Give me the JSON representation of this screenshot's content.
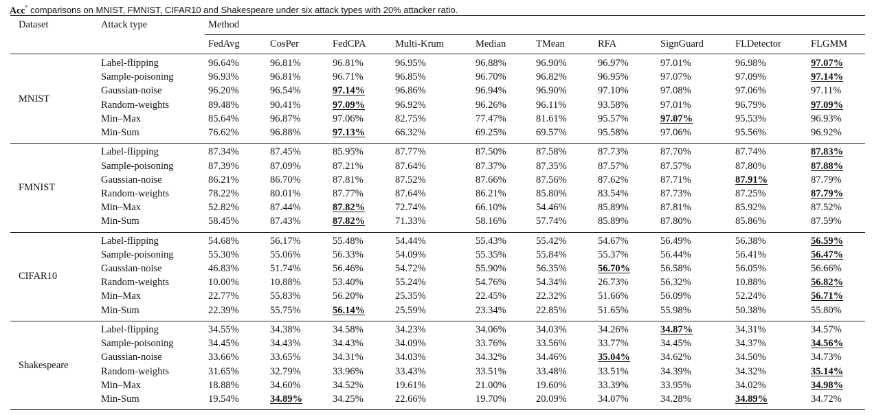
{
  "caption": {
    "term": "Acc",
    "sup": "*",
    "text": "comparisons on MNIST, FMNIST, CIFAR10 and Shakespeare under six attack types with 20% attacker ratio."
  },
  "header": {
    "dataset": "Dataset",
    "attack_type": "Attack type",
    "method": "Method",
    "methods": [
      "FedAvg",
      "CosPer",
      "FedCPA",
      "Multi-Krum",
      "Median",
      "TMean",
      "RFA",
      "SignGuard",
      "FLDetector",
      "FLGMM"
    ]
  },
  "groups": [
    {
      "dataset": "MNIST",
      "rows": [
        {
          "attack": "Label-flipping",
          "values": [
            "96.64%",
            "96.81%",
            "96.81%",
            "96.95%",
            "96.88%",
            "96.90%",
            "96.97%",
            "97.01%",
            "96.98%",
            "97.07%"
          ],
          "best": [
            9
          ]
        },
        {
          "attack": "Sample-poisoning",
          "values": [
            "96.93%",
            "96.81%",
            "96.71%",
            "96.85%",
            "96.70%",
            "96.82%",
            "96.95%",
            "97.07%",
            "97.09%",
            "97.14%"
          ],
          "best": [
            9
          ]
        },
        {
          "attack": "Gaussian-noise",
          "values": [
            "96.20%",
            "96.54%",
            "97.14%",
            "96.86%",
            "96.94%",
            "96.90%",
            "97.10%",
            "97.08%",
            "97.06%",
            "97.11%"
          ],
          "best": [
            2
          ]
        },
        {
          "attack": "Random-weights",
          "values": [
            "89.48%",
            "90.41%",
            "97.09%",
            "96.92%",
            "96.26%",
            "96.11%",
            "93.58%",
            "97.01%",
            "96.79%",
            "97.09%"
          ],
          "best": [
            2,
            9
          ]
        },
        {
          "attack": "Min–Max",
          "values": [
            "85.64%",
            "96.87%",
            "97.06%",
            "82.75%",
            "77.47%",
            "81.61%",
            "95.57%",
            "97.07%",
            "95.53%",
            "96.93%"
          ],
          "best": [
            7
          ]
        },
        {
          "attack": "Min-Sum",
          "values": [
            "76.62%",
            "96.88%",
            "97.13%",
            "66.32%",
            "69.25%",
            "69.57%",
            "95.58%",
            "97.06%",
            "95.56%",
            "96.92%"
          ],
          "best": [
            2
          ]
        }
      ]
    },
    {
      "dataset": "FMNIST",
      "rows": [
        {
          "attack": "Label-flipping",
          "values": [
            "87.34%",
            "87.45%",
            "85.95%",
            "87.77%",
            "87.50%",
            "87.58%",
            "87.73%",
            "87.70%",
            "87.74%",
            "87.83%"
          ],
          "best": [
            9
          ]
        },
        {
          "attack": "Sample-poisoning",
          "values": [
            "87.39%",
            "87.09%",
            "87.21%",
            "87.64%",
            "87.37%",
            "87.35%",
            "87.57%",
            "87.57%",
            "87.80%",
            "87.88%"
          ],
          "best": [
            9
          ]
        },
        {
          "attack": "Gaussian-noise",
          "values": [
            "86.21%",
            "86.70%",
            "87.81%",
            "87.52%",
            "87.66%",
            "87.56%",
            "87.62%",
            "87.71%",
            "87.91%",
            "87.79%"
          ],
          "best": [
            8
          ]
        },
        {
          "attack": "Random-weights",
          "values": [
            "78.22%",
            "80.01%",
            "87.77%",
            "87.64%",
            "86.21%",
            "85.80%",
            "83.54%",
            "87.73%",
            "87.25%",
            "87.79%"
          ],
          "best": [
            9
          ]
        },
        {
          "attack": "Min–Max",
          "values": [
            "52.82%",
            "87.44%",
            "87.82%",
            "72.74%",
            "66.10%",
            "54.46%",
            "85.89%",
            "87.81%",
            "85.92%",
            "87.52%"
          ],
          "best": [
            2
          ]
        },
        {
          "attack": "Min-Sum",
          "values": [
            "58.45%",
            "87.43%",
            "87.82%",
            "71.33%",
            "58.16%",
            "57.74%",
            "85.89%",
            "87.80%",
            "85.86%",
            "87.59%"
          ],
          "best": [
            2
          ]
        }
      ]
    },
    {
      "dataset": "CIFAR10",
      "rows": [
        {
          "attack": "Label-flipping",
          "values": [
            "54.68%",
            "56.17%",
            "55.48%",
            "54.44%",
            "55.43%",
            "55.42%",
            "54.67%",
            "56.49%",
            "56.38%",
            "56.59%"
          ],
          "best": [
            9
          ]
        },
        {
          "attack": "Sample-poisoning",
          "values": [
            "55.30%",
            "55.06%",
            "56.33%",
            "54.09%",
            "55.35%",
            "55.84%",
            "55.37%",
            "56.44%",
            "56.41%",
            "56.47%"
          ],
          "best": [
            9
          ]
        },
        {
          "attack": "Gaussian-noise",
          "values": [
            "46.83%",
            "51.74%",
            "56.46%",
            "54.72%",
            "55.90%",
            "56.35%",
            "56.70%",
            "56.58%",
            "56.05%",
            "56.66%"
          ],
          "best": [
            6
          ]
        },
        {
          "attack": "Random-weights",
          "values": [
            "10.00%",
            "10.88%",
            "53.40%",
            "55.24%",
            "54.76%",
            "54.34%",
            "26.73%",
            "56.32%",
            "10.88%",
            "56.82%"
          ],
          "best": [
            9
          ]
        },
        {
          "attack": "Min–Max",
          "values": [
            "22.77%",
            "55.83%",
            "56.20%",
            "25.35%",
            "22.45%",
            "22.32%",
            "51.66%",
            "56.09%",
            "52.24%",
            "56.71%"
          ],
          "best": [
            9
          ]
        },
        {
          "attack": "Min-Sum",
          "values": [
            "22.39%",
            "55.75%",
            "56.14%",
            "25.59%",
            "23.34%",
            "22.85%",
            "51.65%",
            "55.98%",
            "50.38%",
            "55.80%"
          ],
          "best": [
            2
          ]
        }
      ]
    },
    {
      "dataset": "Shakespeare",
      "rows": [
        {
          "attack": "Label-flipping",
          "values": [
            "34.55%",
            "34.38%",
            "34.58%",
            "34.23%",
            "34.06%",
            "34.03%",
            "34.26%",
            "34.87%",
            "34.31%",
            "34.57%"
          ],
          "best": [
            7
          ]
        },
        {
          "attack": "Sample-poisoning",
          "values": [
            "34.45%",
            "34.43%",
            "34.43%",
            "34.09%",
            "33.76%",
            "33.56%",
            "33.77%",
            "34.45%",
            "34.37%",
            "34.56%"
          ],
          "best": [
            9
          ]
        },
        {
          "attack": "Gaussian-noise",
          "values": [
            "33.66%",
            "33.65%",
            "34.31%",
            "34.03%",
            "34.32%",
            "34.46%",
            "35.04%",
            "34.62%",
            "34.50%",
            "34.73%"
          ],
          "best": [
            6
          ]
        },
        {
          "attack": "Random-weights",
          "values": [
            "31.65%",
            "32.79%",
            "33.96%",
            "33.43%",
            "33.51%",
            "33.48%",
            "33.51%",
            "34.39%",
            "34.32%",
            "35.14%"
          ],
          "best": [
            9
          ]
        },
        {
          "attack": "Min–Max",
          "values": [
            "18.88%",
            "34.60%",
            "34.52%",
            "19.61%",
            "21.00%",
            "19.60%",
            "33.39%",
            "33.95%",
            "34.02%",
            "34.98%"
          ],
          "best": [
            9
          ]
        },
        {
          "attack": "Min-Sum",
          "values": [
            "19.54%",
            "34.89%",
            "34.25%",
            "22.66%",
            "19.70%",
            "20.09%",
            "34.07%",
            "34.28%",
            "34.89%",
            "34.72%"
          ],
          "best": [
            1,
            8
          ]
        }
      ]
    }
  ]
}
